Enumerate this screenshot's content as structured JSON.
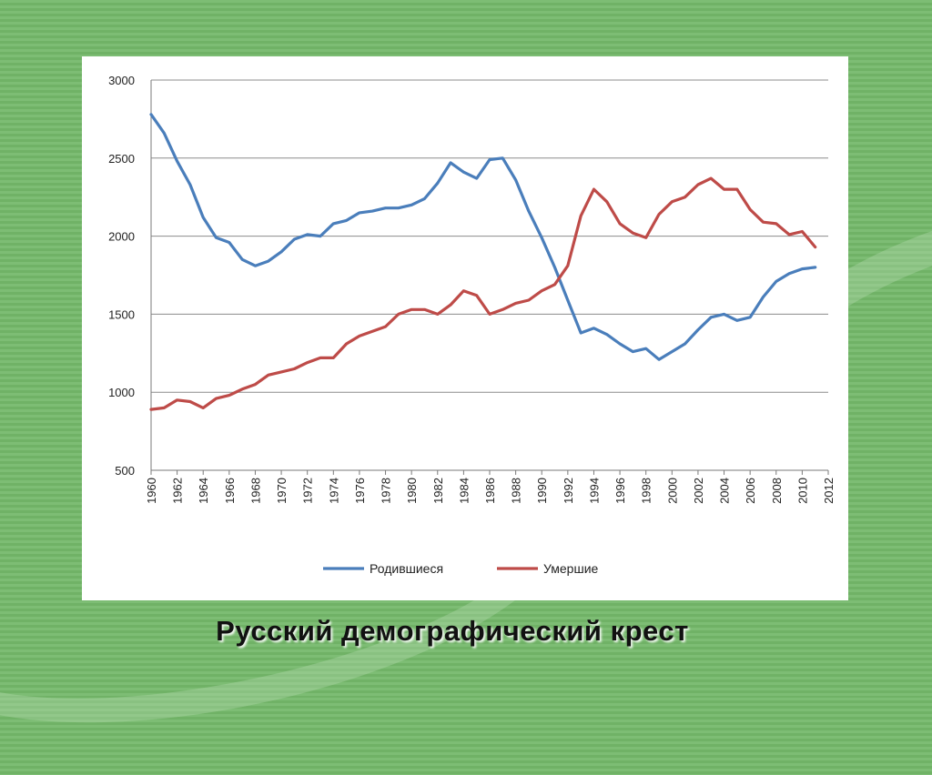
{
  "slide": {
    "title": "Русский демографический крест"
  },
  "colors": {
    "births": "#4a7ebb",
    "deaths": "#be4b48",
    "grid": "#8c8c8c",
    "background": "#77b86e"
  },
  "chart_data": {
    "type": "line",
    "ylim": [
      500,
      3000
    ],
    "yticks": [
      500,
      1000,
      1500,
      2000,
      2500,
      3000
    ],
    "xlim": [
      1960,
      2012
    ],
    "xticks": [
      1960,
      1962,
      1964,
      1966,
      1968,
      1970,
      1972,
      1974,
      1976,
      1978,
      1980,
      1982,
      1984,
      1986,
      1988,
      1990,
      1992,
      1994,
      1996,
      1998,
      2000,
      2002,
      2004,
      2006,
      2008,
      2010,
      2012
    ],
    "grid": true,
    "legend_position": "bottom",
    "x": [
      1960,
      1961,
      1962,
      1963,
      1964,
      1965,
      1966,
      1967,
      1968,
      1969,
      1970,
      1971,
      1972,
      1973,
      1974,
      1975,
      1976,
      1977,
      1978,
      1979,
      1980,
      1981,
      1982,
      1983,
      1984,
      1985,
      1986,
      1987,
      1988,
      1989,
      1990,
      1991,
      1992,
      1993,
      1994,
      1995,
      1996,
      1997,
      1998,
      1999,
      2000,
      2001,
      2002,
      2003,
      2004,
      2005,
      2006,
      2007,
      2008,
      2009,
      2010,
      2011
    ],
    "series": [
      {
        "name": "Родившиеся",
        "color": "#4a7ebb",
        "values": [
          2780,
          2660,
          2480,
          2330,
          2120,
          1990,
          1960,
          1850,
          1810,
          1840,
          1900,
          1980,
          2010,
          2000,
          2080,
          2100,
          2150,
          2160,
          2180,
          2180,
          2200,
          2240,
          2340,
          2470,
          2410,
          2370,
          2490,
          2500,
          2360,
          2160,
          1990,
          1800,
          1590,
          1380,
          1410,
          1370,
          1310,
          1260,
          1280,
          1210,
          1260,
          1310,
          1400,
          1480,
          1500,
          1460,
          1480,
          1610,
          1710,
          1760,
          1790,
          1800
        ]
      },
      {
        "name": "Умершие",
        "color": "#be4b48",
        "values": [
          890,
          900,
          950,
          940,
          900,
          960,
          980,
          1020,
          1050,
          1110,
          1130,
          1150,
          1190,
          1220,
          1220,
          1310,
          1360,
          1390,
          1420,
          1500,
          1530,
          1530,
          1500,
          1560,
          1650,
          1620,
          1500,
          1530,
          1570,
          1590,
          1650,
          1690,
          1810,
          2130,
          2300,
          2220,
          2080,
          2020,
          1990,
          2140,
          2220,
          2250,
          2330,
          2370,
          2300,
          2300,
          2170,
          2090,
          2080,
          2010,
          2030,
          1930
        ]
      }
    ]
  }
}
